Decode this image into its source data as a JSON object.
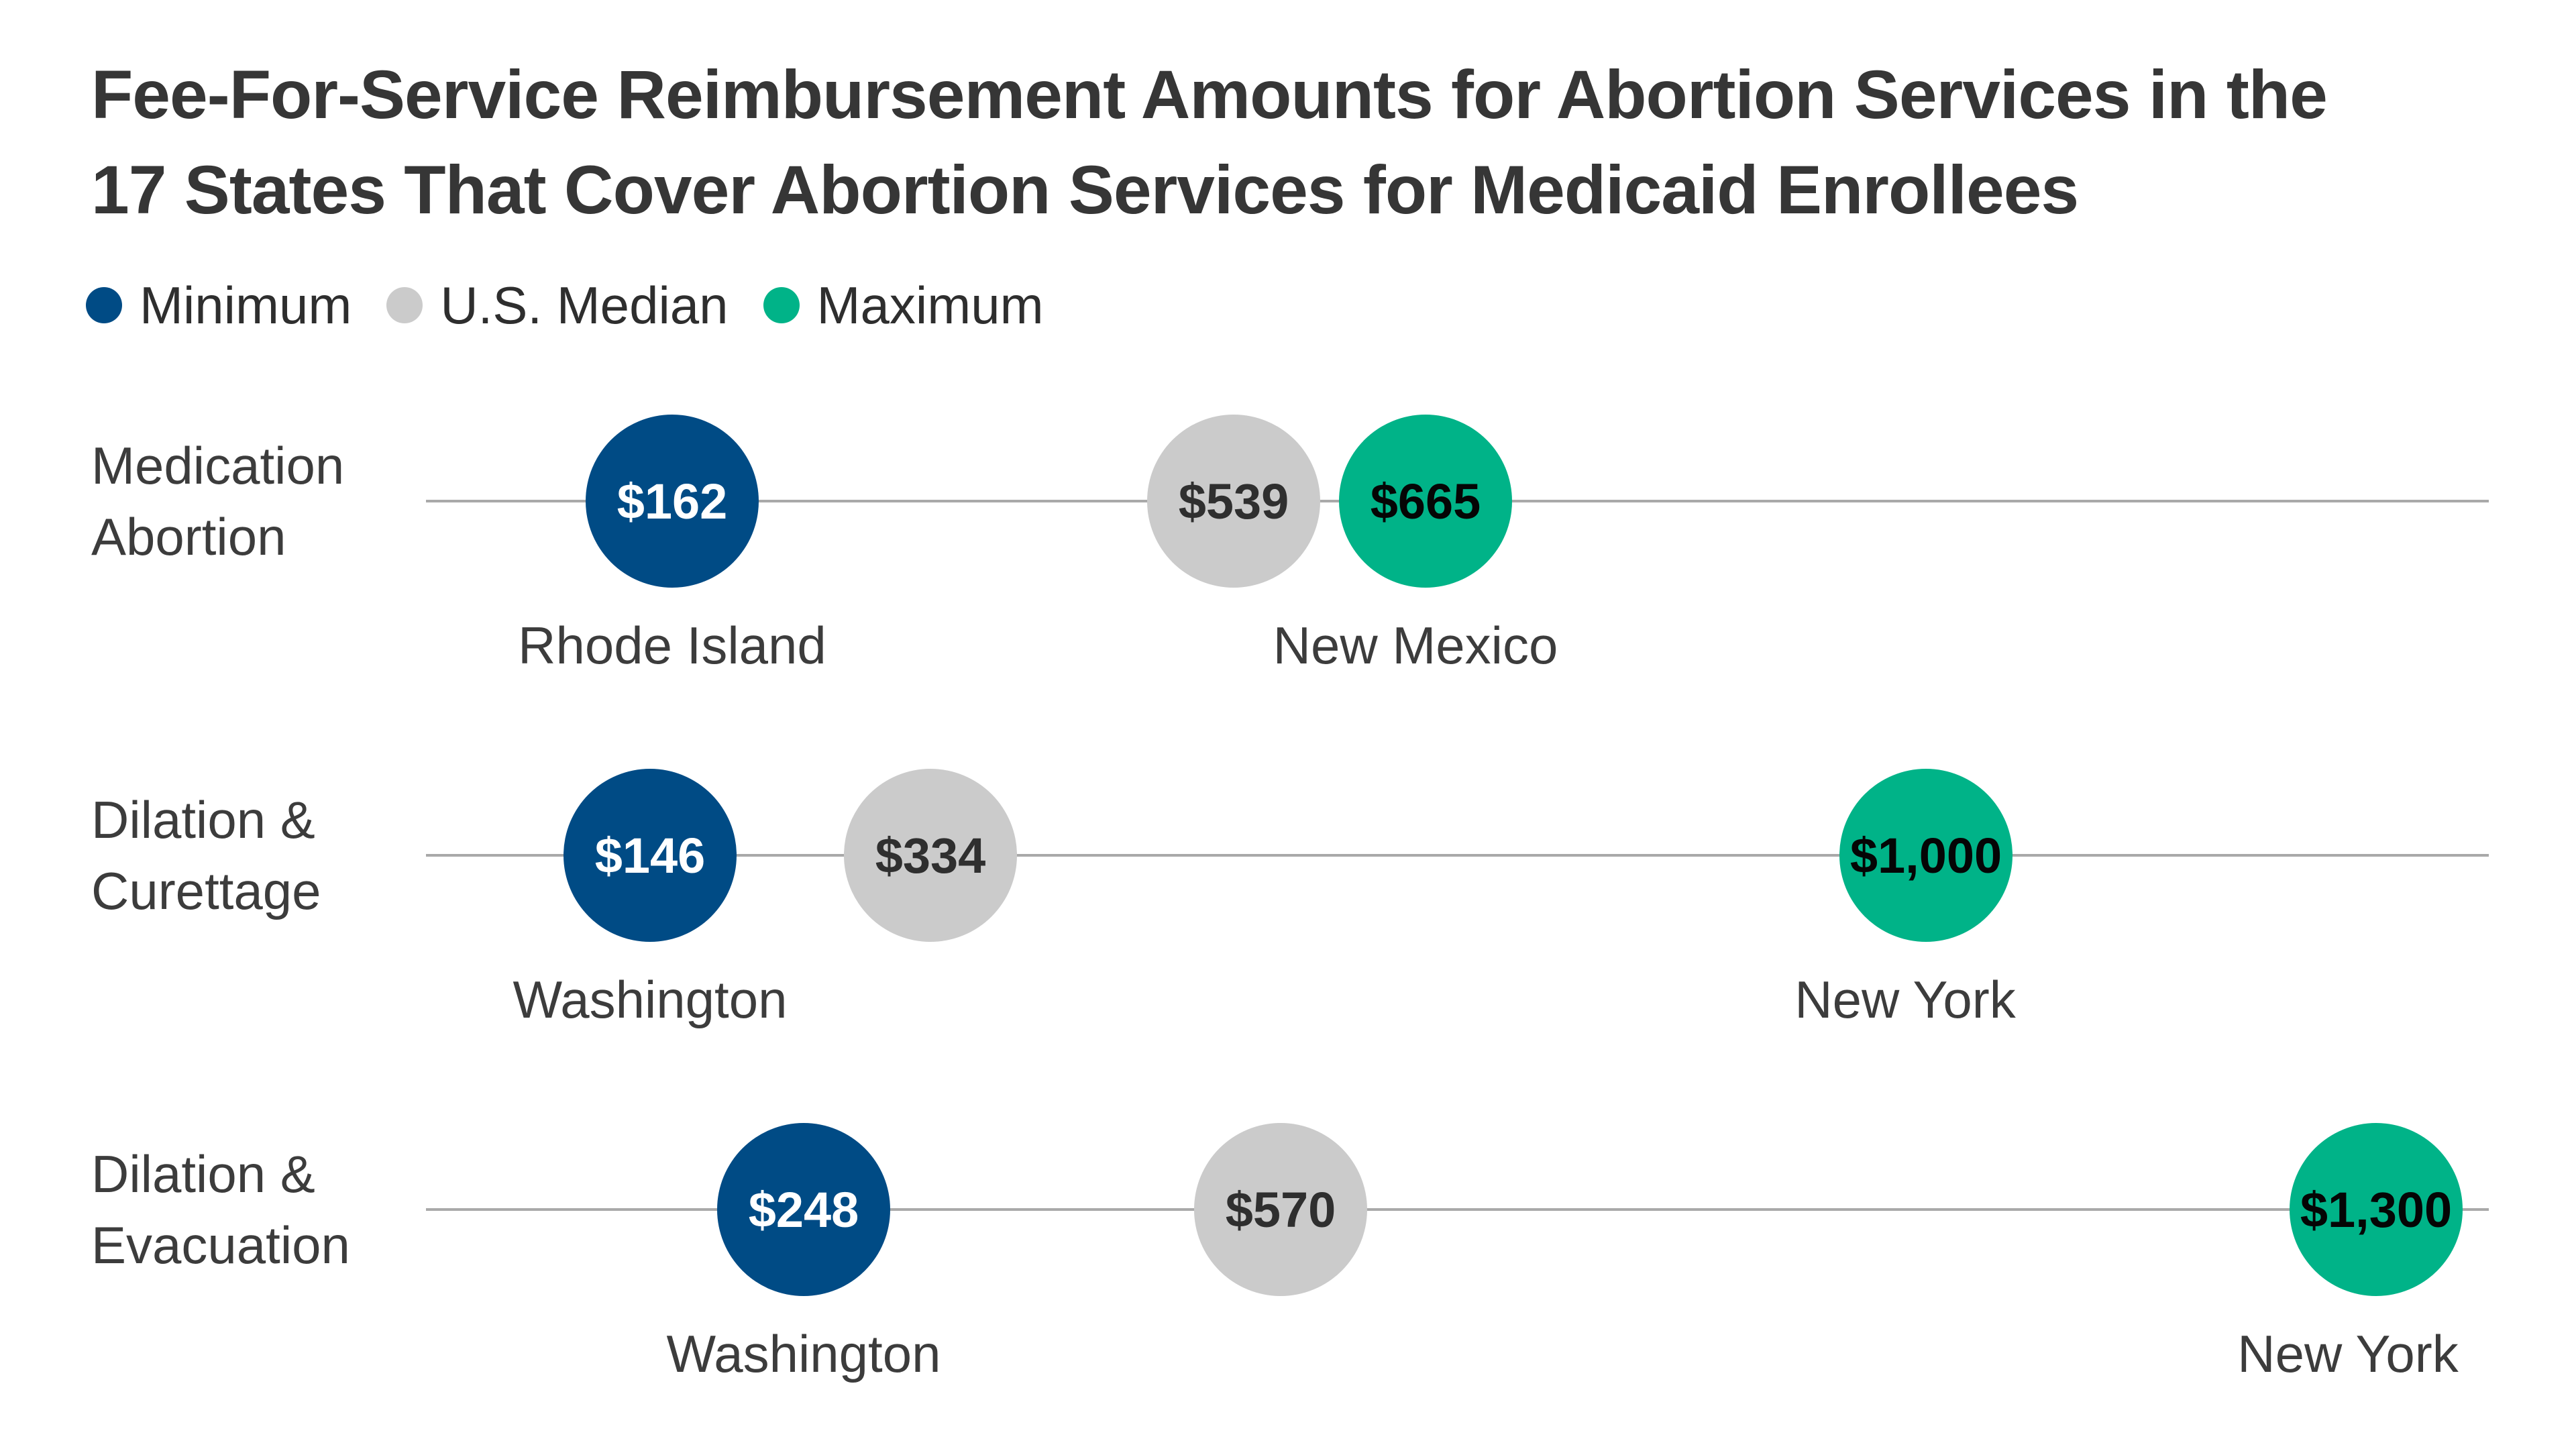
{
  "title": {
    "line1": "Fee-For-Service Reimbursement Amounts for Abortion Services in the",
    "line2": "17 States That Cover Abortion Services for Medicaid Enrollees"
  },
  "legend": {
    "items": [
      {
        "label": "Minimum",
        "color": "#004b85"
      },
      {
        "label": "U.S. Median",
        "color": "#cbcbcb"
      },
      {
        "label": "Maximum",
        "color": "#00b388"
      }
    ]
  },
  "colors": {
    "minimum": "#004b85",
    "median": "#cbcbcb",
    "maximum": "#00b388",
    "grid_line": "#a9a9a9",
    "title_text": "#363636",
    "label_text": "#3c3c3c"
  },
  "chart_data": {
    "type": "scatter",
    "subtype": "dot-plot",
    "unit": "USD",
    "title": "Fee-For-Service Reimbursement Amounts for Abortion Services in the 17 States That Cover Abortion Services for Medicaid Enrollees",
    "series_names": [
      "Minimum",
      "U.S. Median",
      "Maximum"
    ],
    "rows": [
      {
        "category": "Medication Abortion",
        "min": {
          "value": 162,
          "label": "$162",
          "state": "Rhode Island"
        },
        "median": {
          "value": 539,
          "label": "$539"
        },
        "max": {
          "value": 665,
          "label": "$665",
          "state": "New Mexico"
        }
      },
      {
        "category": "Dilation & Curettage",
        "min": {
          "value": 146,
          "label": "$146",
          "state": "Washington"
        },
        "median": {
          "value": 334,
          "label": "$334"
        },
        "max": {
          "value": 1000,
          "label": "$1,000",
          "state": "New York"
        }
      },
      {
        "category": "Dilation & Evacuation",
        "min": {
          "value": 248,
          "label": "$248",
          "state": "Washington"
        },
        "median": {
          "value": 570,
          "label": "$570"
        },
        "max": {
          "value": 1300,
          "label": "$1,300",
          "state": "New York"
        }
      }
    ]
  }
}
